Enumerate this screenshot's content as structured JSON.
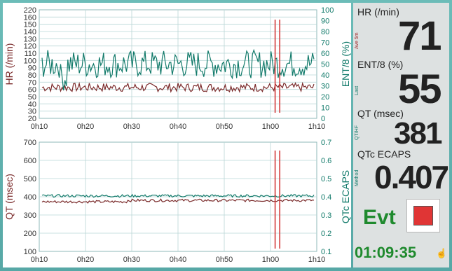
{
  "colors": {
    "hr": "#7a2a2a",
    "ent": "#117a6a",
    "qt": "#7a2a2a",
    "qtc": "#117a6a",
    "grid": "#b9d6d6",
    "marker": "#d23a3a",
    "event_red": "#e03535",
    "evt_text": "#1f8a2e",
    "time_text": "#1f8a2e"
  },
  "chart_data": [
    {
      "type": "line",
      "ylabel_left": "HR (/min)",
      "ylabel_right": "ENT/8 (%)",
      "ylim_left": [
        20,
        220
      ],
      "ylim_right": [
        0,
        100
      ],
      "yticks_left": [
        "220",
        "160",
        "150",
        "140",
        "130",
        "120",
        "110",
        "100",
        "90",
        "80",
        "70",
        "60",
        "50",
        "40",
        "30",
        "20"
      ],
      "yticks_right": [
        "100",
        "90",
        "80",
        "70",
        "60",
        "50",
        "40",
        "30",
        "20",
        "10",
        "0"
      ],
      "x_ticks": [
        "0h10",
        "0h20",
        "0h30",
        "0h40",
        "0h50",
        "1h00",
        "1h10"
      ],
      "series": [
        {
          "name": "HR",
          "axis": "left",
          "mean": 77
        },
        {
          "name": "ENT/8",
          "axis": "right",
          "mean": 50
        }
      ],
      "markers_x": [
        "1h01",
        "1h02"
      ]
    },
    {
      "type": "line",
      "ylabel_left": "QT (msec)",
      "ylabel_right": "QTc ECAPS",
      "ylim_left": [
        100,
        700
      ],
      "ylim_right": [
        0.1,
        0.7
      ],
      "yticks_left": [
        "700",
        "600",
        "500",
        "400",
        "300",
        "200",
        "100"
      ],
      "yticks_right": [
        "0.7",
        "0.6",
        "0.5",
        "0.4",
        "0.3",
        "0.2",
        "0.1"
      ],
      "x_ticks": [
        "0h10",
        "0h20",
        "0h30",
        "0h40",
        "0h50",
        "1h00",
        "1h10"
      ],
      "series": [
        {
          "name": "QT",
          "axis": "left",
          "mean": 380
        },
        {
          "name": "QTc",
          "axis": "right",
          "mean": 0.405
        }
      ],
      "markers_x": [
        "1h01",
        "1h02"
      ]
    }
  ],
  "side": {
    "hr_label": "HR (/min)",
    "hr_sub": "Ave 5m",
    "hr_value": "71",
    "ent_label": "ENT/8 (%)",
    "ent_sub": "Last",
    "ent_value": "55",
    "qt_label": "QT (msec)",
    "qt_sub": "QT/HF",
    "qt_value": "381",
    "qtc_label": "QTc  ECAPS",
    "qtc_sub": "Method",
    "qtc_value": "0.407",
    "evt_label": "Evt",
    "time": "01:09:35",
    "corner_icon": "hand-pointer-icon"
  }
}
